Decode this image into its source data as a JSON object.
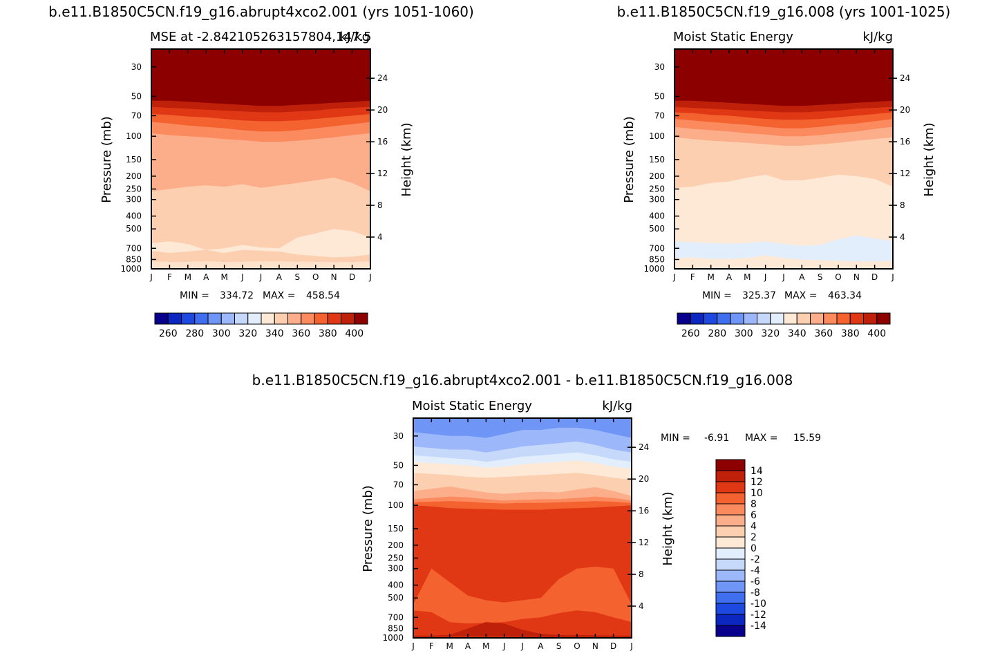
{
  "chart_data": [
    {
      "type": "heatmap",
      "title": "b.e11.B1850C5CN.f19_g16.abrupt4xco2.001 (yrs 1051-1060)",
      "subtitle_left": "MSE at -2.842105263157804,147.5",
      "subtitle_right": "kJ/kg",
      "xlabel": "",
      "ylabel": "Pressure (mb)",
      "ylabel_right": "Height (km)",
      "x_ticks": [
        "J",
        "F",
        "M",
        "A",
        "M",
        "J",
        "J",
        "A",
        "S",
        "O",
        "N",
        "D",
        "J"
      ],
      "y_ticks": [
        "30",
        "50",
        "70",
        "100",
        "150",
        "200",
        "250",
        "300",
        "400",
        "500",
        "700",
        "850",
        "1000"
      ],
      "y_log_scale": true,
      "ylim": [
        1000,
        22
      ],
      "height_ticks": [
        "24",
        "20",
        "16",
        "12",
        "8",
        "4"
      ],
      "stats": {
        "min_label": "MIN = ",
        "min": "334.72",
        "max_label": "MAX = ",
        "max": "458.54"
      },
      "colorbar": {
        "orientation": "horizontal",
        "levels": [
          "260",
          "280",
          "300",
          "320",
          "340",
          "360",
          "380",
          "400"
        ],
        "colors": [
          "#08008c",
          "#0c27bf",
          "#1d49e0",
          "#3f6fef",
          "#6f95f7",
          "#9db8fa",
          "#c7d9fb",
          "#e2eefb",
          "#fde9d6",
          "#fdcfb1",
          "#fcae8a",
          "#fb8a5f",
          "#f4622f",
          "#e03814",
          "#bf200a",
          "#8c0000"
        ]
      },
      "bands": [
        {
          "value": 410,
          "color": "#8c0000",
          "top_hPa": [
            22,
            22,
            22,
            22,
            22,
            22,
            22,
            22,
            22,
            22,
            22,
            22,
            22
          ]
        },
        {
          "value": 400,
          "color": "#bf200a",
          "top_hPa": [
            54,
            54,
            55,
            56,
            57,
            58,
            59,
            59,
            58,
            57,
            56,
            55,
            54
          ]
        },
        {
          "value": 390,
          "color": "#e03814",
          "top_hPa": [
            60,
            61,
            62,
            63,
            64,
            65,
            66,
            66,
            65,
            64,
            62,
            61,
            60
          ]
        },
        {
          "value": 380,
          "color": "#f4622f",
          "top_hPa": [
            68,
            69,
            71,
            72,
            74,
            76,
            77,
            77,
            76,
            74,
            72,
            70,
            68
          ]
        },
        {
          "value": 370,
          "color": "#fb8a5f",
          "top_hPa": [
            78,
            80,
            83,
            85,
            87,
            90,
            92,
            92,
            90,
            87,
            84,
            81,
            78
          ]
        },
        {
          "value": 360,
          "color": "#fcae8a",
          "top_hPa": [
            95,
            98,
            100,
            102,
            105,
            107,
            110,
            110,
            108,
            105,
            102,
            98,
            95
          ]
        },
        {
          "value": 340,
          "color": "#fdcfb1",
          "top_hPa": [
            260,
            250,
            240,
            235,
            240,
            230,
            245,
            235,
            225,
            215,
            205,
            225,
            260
          ]
        },
        {
          "value": 330,
          "color": "#fde9d6",
          "top_hPa": [
            640,
            620,
            650,
            720,
            700,
            660,
            690,
            700,
            580,
            540,
            500,
            520,
            580
          ]
        },
        {
          "value": 340,
          "color": "#fdcfb1",
          "top_hPa": [
            730,
            760,
            740,
            720,
            760,
            720,
            730,
            740,
            780,
            800,
            820,
            810,
            780
          ]
        },
        {
          "value": 335,
          "color": "#fde2cc",
          "top_hPa": [
            880,
            890,
            885,
            880,
            890,
            885,
            880,
            880,
            885,
            885,
            890,
            890,
            880
          ]
        }
      ]
    },
    {
      "type": "heatmap",
      "title": "b.e11.B1850C5CN.f19_g16.008 (yrs 1001-1025)",
      "subtitle_left": "Moist Static Energy",
      "subtitle_right": "kJ/kg",
      "xlabel": "",
      "ylabel": "Pressure (mb)",
      "ylabel_right": "Height (km)",
      "x_ticks": [
        "J",
        "F",
        "M",
        "A",
        "M",
        "J",
        "J",
        "A",
        "S",
        "O",
        "N",
        "D",
        "J"
      ],
      "y_ticks": [
        "30",
        "50",
        "70",
        "100",
        "150",
        "200",
        "250",
        "300",
        "400",
        "500",
        "700",
        "850",
        "1000"
      ],
      "y_log_scale": true,
      "ylim": [
        1000,
        22
      ],
      "height_ticks": [
        "24",
        "20",
        "16",
        "12",
        "8",
        "4"
      ],
      "stats": {
        "min_label": "MIN = ",
        "min": "325.37",
        "max_label": "MAX = ",
        "max": "463.34"
      },
      "colorbar": {
        "orientation": "horizontal",
        "levels": [
          "260",
          "280",
          "300",
          "320",
          "340",
          "360",
          "380",
          "400"
        ],
        "colors": [
          "#08008c",
          "#0c27bf",
          "#1d49e0",
          "#3f6fef",
          "#6f95f7",
          "#9db8fa",
          "#c7d9fb",
          "#e2eefb",
          "#fde9d6",
          "#fdcfb1",
          "#fcae8a",
          "#fb8a5f",
          "#f4622f",
          "#e03814",
          "#bf200a",
          "#8c0000"
        ]
      },
      "bands": [
        {
          "value": 410,
          "color": "#8c0000",
          "top_hPa": [
            22,
            22,
            22,
            22,
            22,
            22,
            22,
            22,
            22,
            22,
            22,
            22,
            22
          ]
        },
        {
          "value": 400,
          "color": "#bf200a",
          "top_hPa": [
            54,
            54,
            55,
            56,
            57,
            58,
            59,
            59,
            58,
            57,
            56,
            55,
            54
          ]
        },
        {
          "value": 390,
          "color": "#e03814",
          "top_hPa": [
            60,
            61,
            62,
            63,
            64,
            65,
            66,
            66,
            65,
            64,
            62,
            61,
            60
          ]
        },
        {
          "value": 380,
          "color": "#f4622f",
          "top_hPa": [
            66,
            67,
            69,
            70,
            72,
            74,
            75,
            75,
            74,
            72,
            70,
            68,
            66
          ]
        },
        {
          "value": 370,
          "color": "#fb8a5f",
          "top_hPa": [
            74,
            76,
            78,
            80,
            82,
            85,
            87,
            87,
            85,
            82,
            80,
            77,
            74
          ]
        },
        {
          "value": 360,
          "color": "#fcae8a",
          "top_hPa": [
            85,
            88,
            90,
            92,
            95,
            97,
            100,
            100,
            98,
            95,
            92,
            88,
            85
          ]
        },
        {
          "value": 345,
          "color": "#fdcfb1",
          "top_hPa": [
            102,
            105,
            108,
            110,
            112,
            115,
            118,
            118,
            115,
            112,
            108,
            105,
            102
          ]
        },
        {
          "value": 335,
          "color": "#fde9d6",
          "top_hPa": [
            245,
            240,
            225,
            220,
            205,
            195,
            215,
            215,
            205,
            195,
            200,
            210,
            240
          ]
        },
        {
          "value": 325,
          "color": "#e2eefb",
          "top_hPa": [
            620,
            630,
            640,
            645,
            640,
            620,
            650,
            670,
            660,
            600,
            560,
            590,
            620
          ]
        },
        {
          "value": 330,
          "color": "#fde9d6",
          "top_hPa": [
            830,
            820,
            840,
            840,
            830,
            790,
            830,
            850,
            860,
            870,
            880,
            880,
            870
          ]
        }
      ]
    },
    {
      "type": "heatmap",
      "title": "b.e11.B1850C5CN.f19_g16.abrupt4xco2.001 - b.e11.B1850C5CN.f19_g16.008",
      "subtitle_left": "Moist Static Energy",
      "subtitle_right": "kJ/kg",
      "xlabel": "",
      "ylabel": "Pressure (mb)",
      "ylabel_right": "Height (km)",
      "x_ticks": [
        "J",
        "F",
        "M",
        "A",
        "M",
        "J",
        "J",
        "A",
        "S",
        "O",
        "N",
        "D",
        "J"
      ],
      "y_ticks": [
        "30",
        "50",
        "70",
        "100",
        "150",
        "200",
        "250",
        "300",
        "400",
        "500",
        "700",
        "850",
        "1000"
      ],
      "y_log_scale": true,
      "ylim": [
        1000,
        22
      ],
      "height_ticks": [
        "24",
        "20",
        "16",
        "12",
        "8",
        "4"
      ],
      "stats": {
        "min_label": "MIN = ",
        "min": "-6.91",
        "max_label": "MAX = ",
        "max": "15.59"
      },
      "colorbar": {
        "orientation": "vertical",
        "levels": [
          "14",
          "12",
          "10",
          "8",
          "6",
          "4",
          "2",
          "0",
          "-2",
          "-4",
          "-6",
          "-8",
          "-10",
          "-12",
          "-14"
        ],
        "colors": [
          "#8c0000",
          "#bf200a",
          "#e03814",
          "#f4622f",
          "#fb8a5f",
          "#fcae8a",
          "#fdcfb1",
          "#fde9d6",
          "#e2eefb",
          "#c7d9fb",
          "#9db8fa",
          "#6f95f7",
          "#3f6fef",
          "#1d49e0",
          "#0c27bf",
          "#08008c"
        ]
      },
      "bands": [
        {
          "value": -5,
          "color": "#6f95f7",
          "top_hPa": [
            22,
            22,
            22,
            22,
            22,
            22,
            22,
            22,
            22,
            22,
            22,
            22,
            22
          ]
        },
        {
          "value": -3,
          "color": "#9db8fa",
          "top_hPa": [
            28,
            29,
            30,
            30,
            31,
            29,
            27,
            27,
            26,
            26,
            27,
            29,
            31
          ]
        },
        {
          "value": -1,
          "color": "#c7d9fb",
          "top_hPa": [
            36,
            37,
            38,
            38,
            40,
            38,
            36,
            35,
            34,
            33,
            35,
            38,
            40
          ]
        },
        {
          "value": 1,
          "color": "#e2eefb",
          "top_hPa": [
            42,
            43,
            44,
            45,
            47,
            45,
            43,
            42,
            41,
            40,
            42,
            45,
            47
          ]
        },
        {
          "value": 1,
          "color": "#fde9d6",
          "top_hPa": [
            47,
            48,
            49,
            50,
            52,
            51,
            49,
            48,
            47,
            46,
            48,
            51,
            53
          ]
        },
        {
          "value": 3,
          "color": "#fdcfb1",
          "top_hPa": [
            57,
            58,
            59,
            61,
            62,
            61,
            60,
            59,
            58,
            57,
            59,
            62,
            64
          ]
        },
        {
          "value": 5,
          "color": "#fcae8a",
          "top_hPa": [
            78,
            75,
            72,
            76,
            80,
            82,
            80,
            79,
            80,
            76,
            73,
            78,
            85
          ]
        },
        {
          "value": 7,
          "color": "#fb8a5f",
          "top_hPa": [
            90,
            88,
            86,
            87,
            90,
            92,
            91,
            90,
            90,
            88,
            86,
            88,
            92
          ]
        },
        {
          "value": 9,
          "color": "#f4622f",
          "top_hPa": [
            95,
            94,
            93,
            94,
            96,
            97,
            96,
            96,
            95,
            94,
            93,
            94,
            96
          ]
        },
        {
          "value": 11,
          "color": "#e03814",
          "top_hPa": [
            100,
            102,
            105,
            106,
            107,
            108,
            108,
            108,
            106,
            105,
            104,
            102,
            100
          ]
        },
        {
          "value": 9,
          "color": "#f4622f",
          "top_hPa": [
            560,
            300,
            380,
            480,
            520,
            540,
            520,
            500,
            360,
            300,
            290,
            300,
            560
          ]
        },
        {
          "value": 11,
          "color": "#e03814",
          "top_hPa": [
            620,
            640,
            760,
            780,
            770,
            760,
            720,
            700,
            650,
            620,
            640,
            700,
            760
          ]
        },
        {
          "value": 13,
          "color": "#bf200a",
          "top_hPa": [
            960,
            960,
            950,
            850,
            760,
            780,
            870,
            930,
            950,
            950,
            955,
            960,
            960
          ]
        },
        {
          "value": 11,
          "color": "#e03814",
          "top_hPa": [
            985,
            985,
            980,
            975,
            980,
            980,
            985,
            985,
            985,
            985,
            985,
            985,
            985
          ]
        }
      ]
    }
  ]
}
